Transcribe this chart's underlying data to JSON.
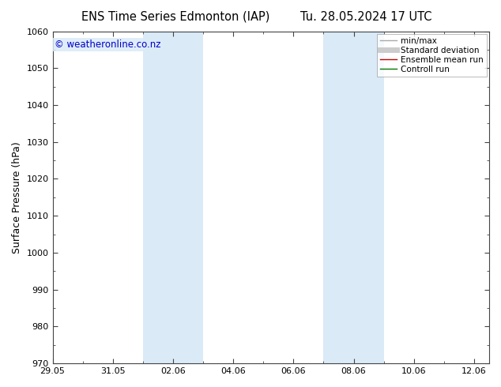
{
  "title_left": "ENS Time Series Edmonton (IAP)",
  "title_right": "Tu. 28.05.2024 17 UTC",
  "ylabel": "Surface Pressure (hPa)",
  "ylim": [
    970,
    1060
  ],
  "yticks": [
    970,
    980,
    990,
    1000,
    1010,
    1020,
    1030,
    1040,
    1050,
    1060
  ],
  "xtick_labels": [
    "29.05",
    "31.05",
    "02.06",
    "04.06",
    "06.06",
    "08.06",
    "10.06",
    "12.06"
  ],
  "x_dates_numeric": [
    0,
    2,
    4,
    6,
    8,
    10,
    12,
    14
  ],
  "xlim": [
    0,
    14.5
  ],
  "shade_bands": [
    {
      "start": 3,
      "end": 5
    },
    {
      "start": 9,
      "end": 11
    }
  ],
  "shade_color": "#daeaf7",
  "background_color": "#ffffff",
  "watermark": "© weatheronline.co.nz",
  "watermark_color": "#0000cc",
  "watermark_bg": "#daeaf7",
  "legend_items": [
    {
      "label": "min/max",
      "color": "#aaaaaa",
      "lw": 1.0
    },
    {
      "label": "Standard deviation",
      "color": "#cccccc",
      "lw": 5
    },
    {
      "label": "Ensemble mean run",
      "color": "#cc0000",
      "lw": 1.0
    },
    {
      "label": "Controll run",
      "color": "#007700",
      "lw": 1.0
    }
  ],
  "spine_color": "#444444",
  "tick_color": "#444444",
  "title_fontsize": 10.5,
  "axis_label_fontsize": 9,
  "tick_fontsize": 8,
  "legend_fontsize": 7.5,
  "watermark_fontsize": 8.5
}
